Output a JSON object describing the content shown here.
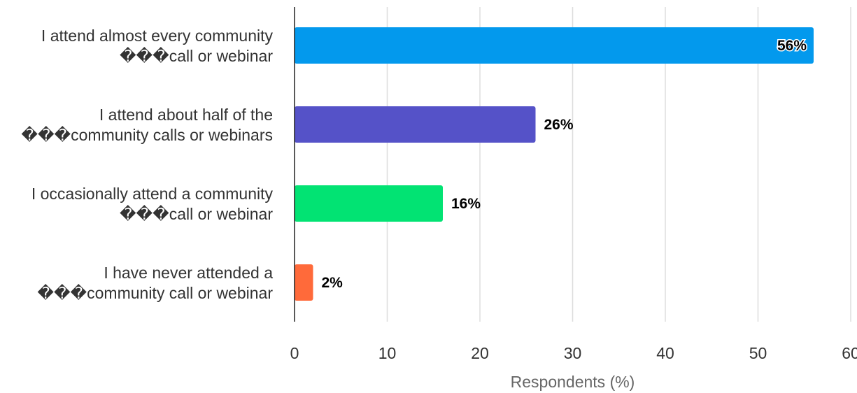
{
  "chart_data": {
    "type": "bar",
    "orientation": "horizontal",
    "categories": [
      [
        "I attend almost every community",
        "���call or webinar"
      ],
      [
        "I attend about half of the",
        "���community calls or webinars"
      ],
      [
        "I occasionally attend a community",
        "���call or webinar"
      ],
      [
        "I have never attended a",
        "���community call or webinar"
      ]
    ],
    "values": [
      56,
      26,
      16,
      2
    ],
    "data_labels": [
      "56%",
      "26%",
      "16%",
      "2%"
    ],
    "colors": [
      "#0399ED",
      "#5552C8",
      "#02E373",
      "#FF6A3A"
    ],
    "xlabel": "Respondents (%)",
    "xlim": [
      0,
      60
    ],
    "xticks": [
      0,
      10,
      20,
      30,
      40,
      50,
      60
    ],
    "grid": true
  }
}
